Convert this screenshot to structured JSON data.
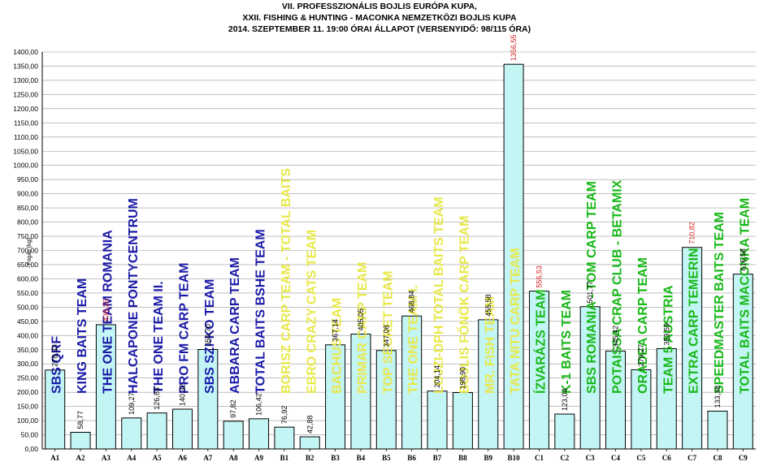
{
  "title_lines": [
    "VII. PROFESSZIONÁLIS BOJLIS EURÓPA KUPA,",
    "XXII. FISHING & HUNTING - MACONKA NEMZETKÖZI BOJLIS KUPA",
    "2014. SZEPTEMBER 11. 19:00 ÓRAI ÁLLAPOT (VERSENYIDŐ: 98/115 ÓRA)"
  ],
  "ylabel": "Fogás (kg)",
  "colors": {
    "bar_fill": "#c4f5f5",
    "bar_stroke": "#000000",
    "highlight_value": "#d42020",
    "team_blue": "#1a1aa8",
    "team_yellow": "#e8e84a",
    "team_green": "#17b817",
    "grid": "#9a9a9a"
  },
  "chart_data": {
    "type": "bar",
    "ylim": [
      0,
      1400
    ],
    "ytick_step": 50,
    "yticks": [
      "0,00",
      "50,00",
      "100,00",
      "150,00",
      "200,00",
      "250,00",
      "300,00",
      "350,00",
      "400,00",
      "450,00",
      "500,00",
      "550,00",
      "600,00",
      "650,00",
      "700,00",
      "750,00",
      "800,00",
      "850,00",
      "900,00",
      "950,00",
      "1000,00",
      "1050,00",
      "1100,00",
      "1150,00",
      "1200,00",
      "1250,00",
      "1300,00",
      "1350,00",
      "1400,00"
    ],
    "grid": true,
    "categories": [
      "A1",
      "A2",
      "A3",
      "A4",
      "A5",
      "A6",
      "A7",
      "A8",
      "A9",
      "B1",
      "B2",
      "B3",
      "B4",
      "B5",
      "B6",
      "B7",
      "B8",
      "B9",
      "B10",
      "C1",
      "C2",
      "C3",
      "C4",
      "C5",
      "C6",
      "C7",
      "C8",
      "C9"
    ],
    "values": [
      278.33,
      58.77,
      438.25,
      109.27,
      126.83,
      140.32,
      350.7,
      97.82,
      106.42,
      76.92,
      42.88,
      367.14,
      405.05,
      347.08,
      468.84,
      204.14,
      198.9,
      455.58,
      1356.55,
      556.53,
      123.04,
      501.77,
      345.42,
      279.27,
      353.59,
      710.82,
      133.38,
      616.58
    ],
    "value_labels": [
      "278,33",
      "58,77",
      "438,25",
      "109,27",
      "126,83",
      "140,32",
      "350,70",
      "97,82",
      "106,42",
      "76,92",
      "42,88",
      "367,14",
      "405,05",
      "347,08",
      "468,84",
      "204,14",
      "198,90",
      "455,58",
      "1356,55",
      "556,53",
      "123,04",
      "501,77",
      "345,42",
      "279,27",
      "353,59",
      "710,82",
      "133,38",
      "616,58"
    ],
    "highlighted_values": [
      "A3",
      "B10",
      "C1",
      "C7"
    ],
    "team_labels": [
      {
        "text": "SBS QRF",
        "group": "blue"
      },
      {
        "text": "KING BAITS TEAM",
        "group": "blue"
      },
      {
        "text": "THE ONE TEAM ROMANIA",
        "group": "blue"
      },
      {
        "text": "HALCAPONE PONTYCENTRUM",
        "group": "blue"
      },
      {
        "text": "THE ONE TEAM II.",
        "group": "blue"
      },
      {
        "text": "PRO FM CARP TEAM",
        "group": "blue"
      },
      {
        "text": "SBS SZI-KO TEAM",
        "group": "blue"
      },
      {
        "text": "ABBARA CARP TEAM",
        "group": "blue"
      },
      {
        "text": "TOTAL BAITS BSHE TEAM",
        "group": "blue"
      },
      {
        "text": "BORISZ CARP TEAM - TOTAL BAITS",
        "group": "yellow"
      },
      {
        "text": "EBRO CRAZY CATS TEAM",
        "group": "yellow"
      },
      {
        "text": "BACHUS TEAM",
        "group": "yellow"
      },
      {
        "text": "PRIMAR CARP TEAM",
        "group": "yellow"
      },
      {
        "text": "TOP SECRET TEAM",
        "group": "yellow"
      },
      {
        "text": "THE ONE TEAM I.",
        "group": "yellow"
      },
      {
        "text": "LOJZI-DPH TOTAL BAITS TEAM",
        "group": "yellow"
      },
      {
        "text": "BOJLIS FŐNÖK CARP TEAM",
        "group": "yellow"
      },
      {
        "text": "MR. FISH TEAM",
        "group": "yellow"
      },
      {
        "text": "TATA NITU CARP TEAM",
        "group": "yellow"
      },
      {
        "text": "ÍZVARÁZS TEAM",
        "group": "green"
      },
      {
        "text": "K-1 BAITS TEAM",
        "group": "green"
      },
      {
        "text": "SBS ROMANIA - TOM CARP TEAM",
        "group": "green"
      },
      {
        "text": "POTAISSA CRAP CLUB - BETAMIX",
        "group": "green"
      },
      {
        "text": "ORADEA CARP TEAM",
        "group": "green"
      },
      {
        "text": "TEAM 5 AUSTRIA",
        "group": "green"
      },
      {
        "text": "EXTRA CARP TEMERIN",
        "group": "green"
      },
      {
        "text": "SPEEDMASTER BAITS TEAM",
        "group": "green"
      },
      {
        "text": "TOTAL BAITS MACONKA TEAM",
        "group": "green"
      }
    ]
  }
}
